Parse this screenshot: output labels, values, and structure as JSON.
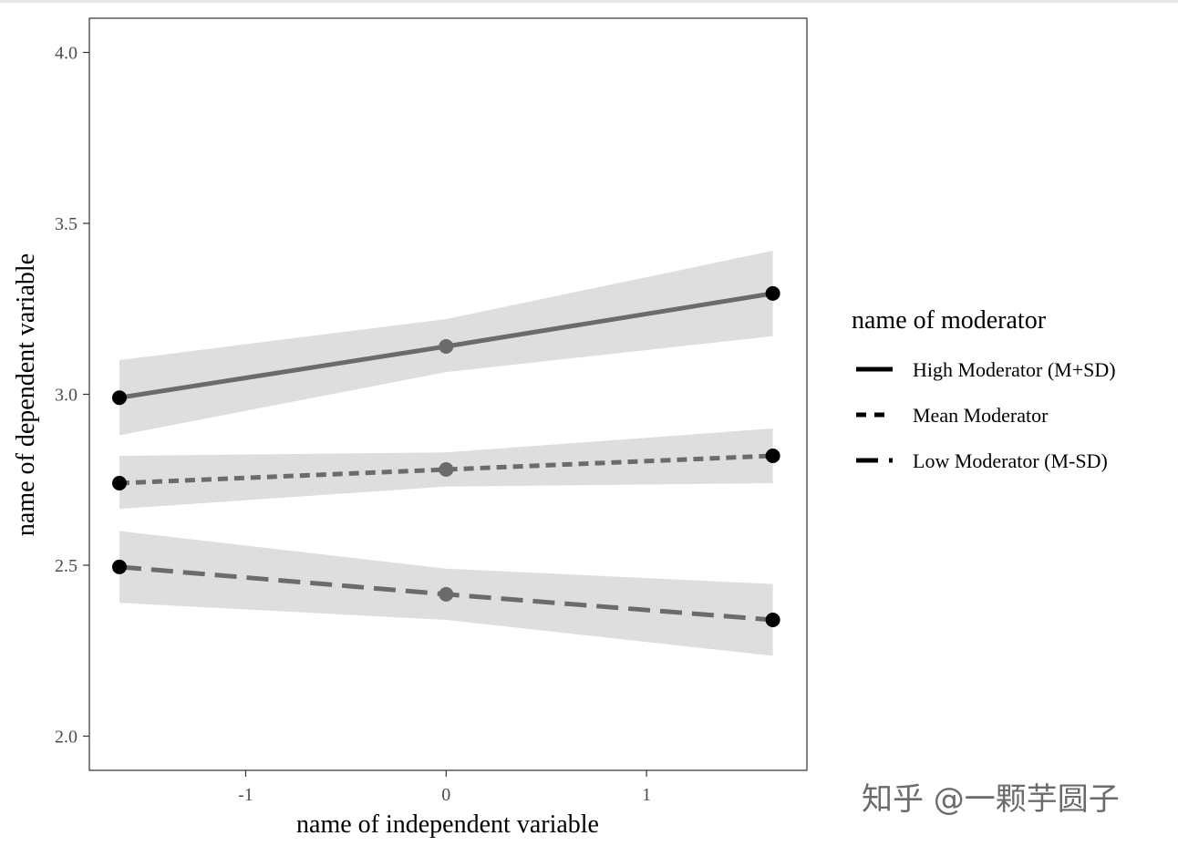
{
  "chart_data": {
    "type": "line",
    "xlabel": "name of independent variable",
    "ylabel": "name of dependent variable",
    "xlim": [
      -1.78,
      1.8
    ],
    "ylim": [
      1.9,
      4.1
    ],
    "x_ticks": [
      -1,
      0,
      1
    ],
    "x_tick_labels": [
      "-1",
      "0",
      "1"
    ],
    "y_ticks": [
      2.0,
      2.5,
      3.0,
      3.5,
      4.0
    ],
    "y_tick_labels": [
      "2.0",
      "2.5",
      "3.0",
      "3.5",
      "4.0"
    ],
    "grid": false,
    "x": [
      -1.63,
      0,
      1.63
    ],
    "series": [
      {
        "name": "High Moderator (M+SD)",
        "linestyle": "solid",
        "values": [
          2.99,
          3.14,
          3.295
        ],
        "ci_lower": [
          2.88,
          3.065,
          3.17
        ],
        "ci_upper": [
          3.1,
          3.22,
          3.42
        ]
      },
      {
        "name": "Mean Moderator",
        "linestyle": "dotted",
        "values": [
          2.74,
          2.78,
          2.82
        ],
        "ci_lower": [
          2.665,
          2.73,
          2.74
        ],
        "ci_upper": [
          2.82,
          2.83,
          2.9
        ]
      },
      {
        "name": "Low Moderator (M-SD)",
        "linestyle": "dashed",
        "values": [
          2.495,
          2.415,
          2.34
        ],
        "ci_lower": [
          2.39,
          2.34,
          2.235
        ],
        "ci_upper": [
          2.6,
          2.49,
          2.445
        ]
      }
    ],
    "legend": {
      "title": "name of moderator",
      "placement": "right"
    },
    "colors": {
      "line": "#6b6b6b",
      "ribbon": "#dedede",
      "point_end": "#000000",
      "point_mid": "#6b6b6b",
      "panel_border": "#333333",
      "tick_text": "#4d4d4d"
    }
  },
  "watermark": {
    "text": "知乎 @一颗芋圆子"
  }
}
